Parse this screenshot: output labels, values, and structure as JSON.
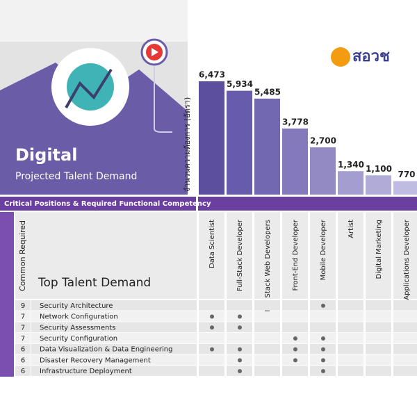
{
  "header": {
    "title": "Digital",
    "subtitle": "Projected Talent Demand",
    "logo": "สอวช"
  },
  "chart_data": {
    "type": "bar",
    "y_label": "จำนวนความต้องการ (อัตรา)",
    "categories": [
      "Data Scientist",
      "Full-Stack Developer",
      "Full Stack Web Developers",
      "Front-End Developer",
      "Mobile Developer",
      "Artist",
      "Digital Marketing",
      "Applications Developer"
    ],
    "values": [
      6473,
      5934,
      5485,
      3778,
      2700,
      1340,
      1100,
      770
    ],
    "value_labels": [
      "6,473",
      "5,934",
      "5,485",
      "3,778",
      "2,700",
      "1,340",
      "1,100",
      "770"
    ],
    "colors": [
      "#5b4f9e",
      "#675cab",
      "#7267b1",
      "#8379bb",
      "#938ac4",
      "#a49dd0",
      "#b1abd8",
      "#c0bbe1"
    ]
  },
  "banner": "Critical Positions & Required Functional Competency",
  "table": {
    "count_header": "Common Required",
    "title": "Top Talent Demand",
    "rows": [
      {
        "count": 9,
        "skill": "Security Architecture",
        "marks": [
          false,
          false,
          false,
          false,
          true,
          false,
          false,
          false
        ]
      },
      {
        "count": 7,
        "skill": "Network Configuration",
        "marks": [
          true,
          true,
          false,
          false,
          false,
          false,
          false,
          false
        ]
      },
      {
        "count": 7,
        "skill": "Security Assessments",
        "marks": [
          true,
          true,
          false,
          false,
          false,
          false,
          false,
          false
        ]
      },
      {
        "count": 7,
        "skill": "Security Configuration",
        "marks": [
          false,
          false,
          false,
          true,
          true,
          false,
          false,
          false
        ]
      },
      {
        "count": 6,
        "skill": "Data Visualization & Data Engineering",
        "marks": [
          true,
          true,
          false,
          true,
          true,
          false,
          false,
          false
        ]
      },
      {
        "count": 6,
        "skill": "Disaster Recovery Management",
        "marks": [
          false,
          true,
          false,
          true,
          true,
          false,
          false,
          false
        ]
      },
      {
        "count": 6,
        "skill": "Infrastructure Deployment",
        "marks": [
          false,
          true,
          false,
          false,
          true,
          false,
          false,
          false
        ]
      }
    ]
  }
}
